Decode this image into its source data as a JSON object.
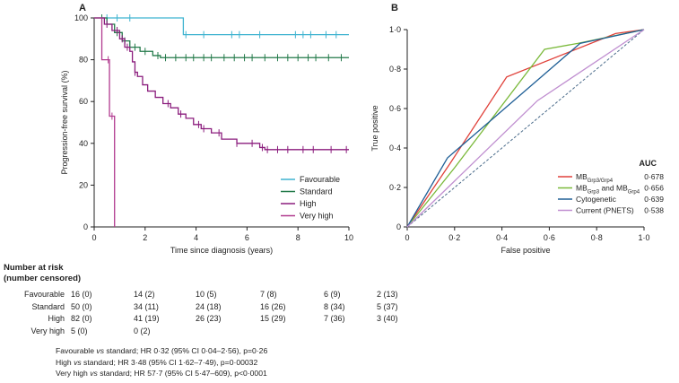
{
  "colors": {
    "favourable": "#3fb3d0",
    "standard": "#237a4a",
    "high": "#8b1d7d",
    "veryhigh": "#b13a8f",
    "roc_mbgrp": "#e0413a",
    "roc_mbgrp34": "#7ab93a",
    "roc_cytogenetic": "#1f5f96",
    "roc_current": "#c08fd0",
    "diagonal": "#4a6b8a"
  },
  "chart_data": [
    {
      "id": "A",
      "type": "line",
      "panel_label": "A",
      "xlabel": "Time since diagnosis (years)",
      "ylabel": "Progression-free survival (%)",
      "xlim": [
        0,
        10
      ],
      "ylim": [
        0,
        100
      ],
      "xticks": [
        "0",
        "2",
        "4",
        "6",
        "8",
        "10"
      ],
      "yticks": [
        "0",
        "20",
        "40",
        "60",
        "80",
        "100"
      ],
      "legend_position": "right",
      "series": [
        {
          "name": "Favourable",
          "color_key": "favourable",
          "points": [
            [
              0,
              100
            ],
            [
              3.5,
              100
            ],
            [
              3.5,
              92
            ],
            [
              10,
              92
            ]
          ],
          "censor": [
            0.5,
            0.9,
            1.4,
            3.6,
            4.3,
            5.4,
            5.7,
            6.5,
            7.9,
            8.2,
            8.5,
            9.1,
            9.5
          ]
        },
        {
          "name": "Standard",
          "color_key": "standard",
          "points": [
            [
              0,
              100
            ],
            [
              0.5,
              97
            ],
            [
              0.8,
              93
            ],
            [
              1.1,
              89
            ],
            [
              1.4,
              86
            ],
            [
              1.8,
              84
            ],
            [
              2.3,
              82
            ],
            [
              2.6,
              81
            ],
            [
              10,
              81
            ]
          ],
          "censor": [
            0.3,
            0.9,
            1.2,
            1.6,
            2.0,
            2.5,
            2.8,
            3.2,
            3.6,
            3.9,
            4.3,
            4.6,
            5.1,
            5.5,
            5.9,
            6.2,
            6.7,
            7.2,
            7.6,
            8.0,
            8.4,
            8.7,
            9.2,
            9.7
          ]
        },
        {
          "name": "High",
          "color_key": "high",
          "points": [
            [
              0,
              100
            ],
            [
              0.4,
              97
            ],
            [
              0.7,
              94
            ],
            [
              1.0,
              90
            ],
            [
              1.2,
              86
            ],
            [
              1.4,
              84
            ],
            [
              1.5,
              79
            ],
            [
              1.6,
              74
            ],
            [
              1.7,
              72
            ],
            [
              1.9,
              68
            ],
            [
              2.1,
              65
            ],
            [
              2.4,
              62
            ],
            [
              2.7,
              59
            ],
            [
              3.0,
              57
            ],
            [
              3.3,
              54
            ],
            [
              3.6,
              52
            ],
            [
              3.9,
              49
            ],
            [
              4.2,
              47
            ],
            [
              4.6,
              45
            ],
            [
              5.0,
              42
            ],
            [
              5.6,
              40
            ],
            [
              6.5,
              38
            ],
            [
              6.7,
              37
            ],
            [
              10,
              37
            ]
          ],
          "censor": [
            0.5,
            0.9,
            1.1,
            1.3,
            1.6,
            2.9,
            3.4,
            4.1,
            4.3,
            4.9,
            5.6,
            6.2,
            6.6,
            6.8,
            7.2,
            7.6,
            8.2,
            8.6,
            9.3,
            9.9
          ]
        },
        {
          "name": "Very high",
          "color_key": "veryhigh",
          "points": [
            [
              0,
              100
            ],
            [
              0.3,
              100
            ],
            [
              0.3,
              80
            ],
            [
              0.6,
              80
            ],
            [
              0.6,
              53
            ],
            [
              0.8,
              53
            ],
            [
              0.8,
              0
            ]
          ],
          "censor": [
            0.55,
            0.7
          ]
        }
      ]
    },
    {
      "id": "B",
      "type": "line",
      "panel_label": "B",
      "xlabel": "False positive",
      "ylabel": "True positive",
      "xlim": [
        0,
        1
      ],
      "ylim": [
        0,
        1
      ],
      "xticks": [
        "0",
        "0·2",
        "0·4",
        "0·6",
        "0·8",
        "1·0"
      ],
      "yticks": [
        "0",
        "0·2",
        "0·4",
        "0·6",
        "0·8",
        "1·0"
      ],
      "legend_position": "bottom-right",
      "legend_header": "AUC",
      "series": [
        {
          "name": "MB",
          "sub": "Grp3/Grp4",
          "auc": "0·678",
          "color_key": "roc_mbgrp",
          "points": [
            [
              0,
              0
            ],
            [
              0.18,
              0.32
            ],
            [
              0.42,
              0.76
            ],
            [
              0.88,
              0.98
            ],
            [
              1,
              1
            ]
          ]
        },
        {
          "name_a": "MB",
          "sub_a": "Grp3",
          "mid": " and MB",
          "sub_b": "Grp4",
          "auc": "0·656",
          "color_key": "roc_mbgrp34",
          "points": [
            [
              0,
              0
            ],
            [
              0.2,
              0.3
            ],
            [
              0.58,
              0.9
            ],
            [
              0.72,
              0.93
            ],
            [
              1,
              1
            ]
          ]
        },
        {
          "name": "Cytogenetic",
          "auc": "0·639",
          "color_key": "roc_cytogenetic",
          "points": [
            [
              0,
              0
            ],
            [
              0.17,
              0.35
            ],
            [
              0.73,
              0.93
            ],
            [
              1,
              1
            ]
          ]
        },
        {
          "name": "Current (PNETS)",
          "auc": "0·538",
          "color_key": "roc_current",
          "points": [
            [
              0,
              0
            ],
            [
              0.55,
              0.64
            ],
            [
              1,
              1
            ]
          ]
        }
      ]
    }
  ],
  "risk_table": {
    "title_line1": "Number at risk",
    "title_line2": "(number censored)",
    "rows": [
      {
        "label": "Favourable",
        "values": [
          "16 (0)",
          "14 (2)",
          "10 (5)",
          "7 (8)",
          "6 (9)",
          "2 (13)"
        ]
      },
      {
        "label": "Standard",
        "values": [
          "50 (0)",
          "34 (11)",
          "24 (18)",
          "16 (26)",
          "8 (34)",
          "5 (37)"
        ]
      },
      {
        "label": "High",
        "values": [
          "82 (0)",
          "41 (19)",
          "26 (23)",
          "15 (29)",
          "7 (36)",
          "3 (40)"
        ]
      },
      {
        "label": "Very high",
        "values": [
          "5 (0)",
          "0 (2)"
        ]
      }
    ]
  },
  "stats_lines": [
    {
      "pre": "Favourable ",
      "vs": "vs",
      "post": " standard; HR 0·32 (95% CI 0·04–2·56), p=0·26"
    },
    {
      "pre": "High ",
      "vs": "vs",
      "post": " standard; HR 3·48 (95% CI 1·62–7·49), p=0·00032"
    },
    {
      "pre": "Very high ",
      "vs": "vs",
      "post": " standard; HR 57·7 (95% CI 5·47–609), p<0·0001"
    }
  ]
}
